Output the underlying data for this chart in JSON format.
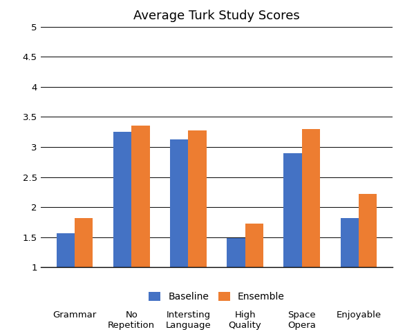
{
  "title": "Average Turk Study Scores",
  "categories_line1": [
    "Grammar",
    "No",
    "Intersting",
    "High",
    "Space",
    "Enjoyable"
  ],
  "categories_line2": [
    "",
    "Repetition",
    "Language",
    "Quality",
    "Opera",
    ""
  ],
  "baseline": [
    1.57,
    3.25,
    3.13,
    1.48,
    2.9,
    1.82
  ],
  "ensemble": [
    1.82,
    3.35,
    3.27,
    1.72,
    3.3,
    2.22
  ],
  "baseline_color": "#4472C4",
  "ensemble_color": "#ED7D31",
  "ylim": [
    1,
    5
  ],
  "yticks": [
    1,
    1.5,
    2,
    2.5,
    3,
    3.5,
    4,
    4.5,
    5
  ],
  "ytick_labels": [
    "1",
    "1.5",
    "2",
    "2.5",
    "3",
    "3.5",
    "4",
    "4.5",
    "5"
  ],
  "legend_labels": [
    "Baseline",
    "Ensemble"
  ],
  "bar_width": 0.32,
  "title_fontsize": 13,
  "tick_fontsize": 9.5,
  "legend_fontsize": 10
}
